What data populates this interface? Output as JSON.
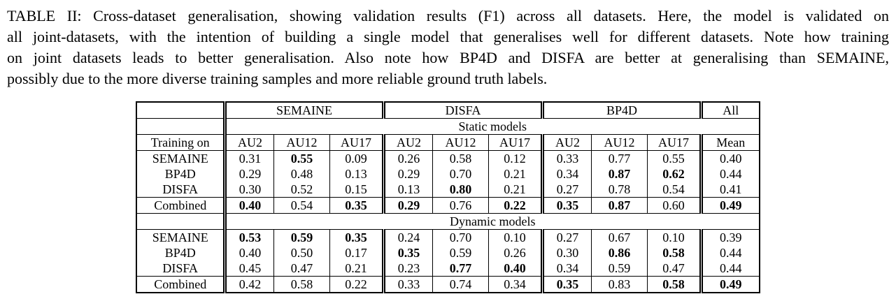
{
  "colors": {
    "ink": "#000000",
    "paper": "#ffffff"
  },
  "caption": {
    "lines": [
      "TABLE II: Cross-dataset generalisation, showing validation results (F1) across all datasets. Here, the model is validated on",
      "all joint-datasets, with the intention of building a single model that generalises well for different datasets. Note how training",
      "on joint datasets leads to better generalisation. Also note how BP4D and DISFA are better at generalising than SEMAINE,",
      "possibly due to the more diverse training samples and more reliable ground truth labels."
    ]
  },
  "table": {
    "row_header_label": "Training on",
    "groups": [
      {
        "label": "SEMAINE",
        "sub": [
          "AU2",
          "AU12",
          "AU17"
        ]
      },
      {
        "label": "DISFA",
        "sub": [
          "AU2",
          "AU12",
          "AU17"
        ]
      },
      {
        "label": "BP4D",
        "sub": [
          "AU2",
          "AU12",
          "AU17"
        ]
      },
      {
        "label": "All",
        "sub": [
          "Mean"
        ]
      }
    ],
    "sections": [
      {
        "label": "Static models",
        "rows": [
          {
            "label": "SEMAINE",
            "values": [
              "0.31",
              "0.55",
              "0.09",
              "0.26",
              "0.58",
              "0.12",
              "0.33",
              "0.77",
              "0.55",
              "0.40"
            ],
            "bold_indices": [
              1
            ]
          },
          {
            "label": "BP4D",
            "values": [
              "0.29",
              "0.48",
              "0.13",
              "0.29",
              "0.70",
              "0.21",
              "0.34",
              "0.87",
              "0.62",
              "0.44"
            ],
            "bold_indices": [
              7,
              8
            ]
          },
          {
            "label": "DISFA",
            "values": [
              "0.30",
              "0.52",
              "0.15",
              "0.13",
              "0.80",
              "0.21",
              "0.27",
              "0.78",
              "0.54",
              "0.41"
            ],
            "bold_indices": [
              4
            ]
          },
          {
            "label": "Combined",
            "values": [
              "0.40",
              "0.54",
              "0.35",
              "0.29",
              "0.76",
              "0.22",
              "0.35",
              "0.87",
              "0.60",
              "0.49"
            ],
            "bold_indices": [
              0,
              2,
              3,
              5,
              6,
              7,
              9
            ]
          }
        ]
      },
      {
        "label": "Dynamic models",
        "rows": [
          {
            "label": "SEMAINE",
            "values": [
              "0.53",
              "0.59",
              "0.35",
              "0.24",
              "0.70",
              "0.10",
              "0.27",
              "0.67",
              "0.10",
              "0.39"
            ],
            "bold_indices": [
              0,
              1,
              2
            ]
          },
          {
            "label": "BP4D",
            "values": [
              "0.40",
              "0.50",
              "0.17",
              "0.35",
              "0.59",
              "0.26",
              "0.30",
              "0.86",
              "0.58",
              "0.44"
            ],
            "bold_indices": [
              3,
              7,
              8
            ]
          },
          {
            "label": "DISFA",
            "values": [
              "0.45",
              "0.47",
              "0.21",
              "0.23",
              "0.77",
              "0.40",
              "0.34",
              "0.59",
              "0.47",
              "0.44"
            ],
            "bold_indices": [
              4,
              5
            ]
          },
          {
            "label": "Combined",
            "values": [
              "0.42",
              "0.58",
              "0.22",
              "0.33",
              "0.74",
              "0.34",
              "0.35",
              "0.83",
              "0.58",
              "0.49"
            ],
            "bold_indices": [
              6,
              8,
              9
            ]
          }
        ]
      }
    ]
  }
}
